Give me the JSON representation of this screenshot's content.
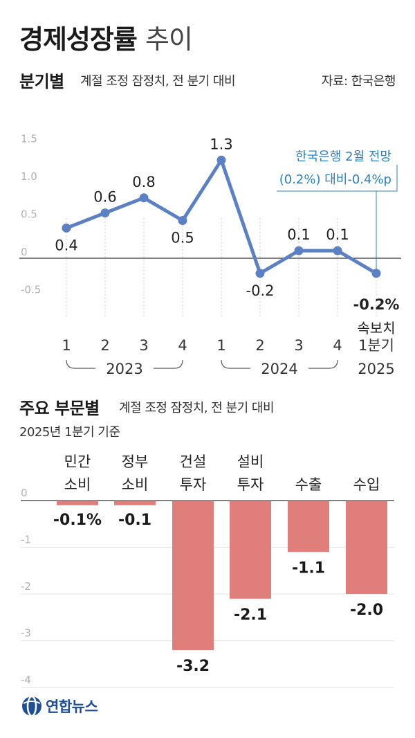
{
  "header": {
    "title": "경제성장률",
    "subtitle": "추이"
  },
  "section1": {
    "title": "분기별",
    "note": "계절 조정 잠정치, 전 분기 대비",
    "source": "자료: 한국은행"
  },
  "section2": {
    "title": "주요 부문별",
    "note": "계절 조정 잠정치, 전 분기 대비",
    "basis": "2025년 1분기 기준"
  },
  "logo": {
    "text": "연합뉴스"
  },
  "colors": {
    "line": "#5b80c4",
    "bar": "#e07e7c",
    "annotation": "#2a7fc0"
  },
  "chart_data": [
    {
      "type": "line",
      "title": "분기별",
      "x": [
        "2023 1",
        "2023 2",
        "2023 3",
        "2023 4",
        "2024 1",
        "2024 2",
        "2024 3",
        "2024 4",
        "2025 1분기"
      ],
      "tick_labels": [
        "1",
        "2",
        "3",
        "4",
        "1",
        "2",
        "3",
        "4",
        "1분기"
      ],
      "year_groups": [
        {
          "label": "2023",
          "start": 0,
          "end": 3
        },
        {
          "label": "2024",
          "start": 4,
          "end": 7
        },
        {
          "label": "2025",
          "start": 8,
          "end": 8
        }
      ],
      "values": [
        0.4,
        0.6,
        0.8,
        0.5,
        1.3,
        -0.2,
        0.1,
        0.1,
        -0.2
      ],
      "value_labels": [
        "0.4",
        "0.6",
        "0.8",
        "0.5",
        "1.3",
        "-0.2",
        "0.1",
        "0.1",
        "-0.2%"
      ],
      "y_ticks": [
        "1.5",
        "1.0",
        "0.5",
        "0",
        "-0.5"
      ],
      "ylim": [
        -0.5,
        1.5
      ],
      "last_point_note": "속보치",
      "annotation": [
        "한국은행 2월 전망",
        "(0.2%) 대비-0.4%p"
      ],
      "grid": "vertical dashed"
    },
    {
      "type": "bar",
      "title": "주요 부문별",
      "categories": [
        [
          "민간",
          "소비"
        ],
        [
          "정부",
          "소비"
        ],
        [
          "건설",
          "투자"
        ],
        [
          "설비",
          "투자"
        ],
        [
          "수출"
        ],
        [
          "수입"
        ]
      ],
      "values": [
        -0.1,
        -0.1,
        -3.2,
        -2.1,
        -1.1,
        -2.0
      ],
      "value_labels": [
        "-0.1%",
        "-0.1",
        "-3.2",
        "-2.1",
        "-1.1",
        "-2.0"
      ],
      "y_ticks": [
        "0",
        "-1",
        "-2",
        "-3",
        "-4"
      ],
      "ylim": [
        -4,
        0
      ],
      "grid": "horizontal"
    }
  ]
}
